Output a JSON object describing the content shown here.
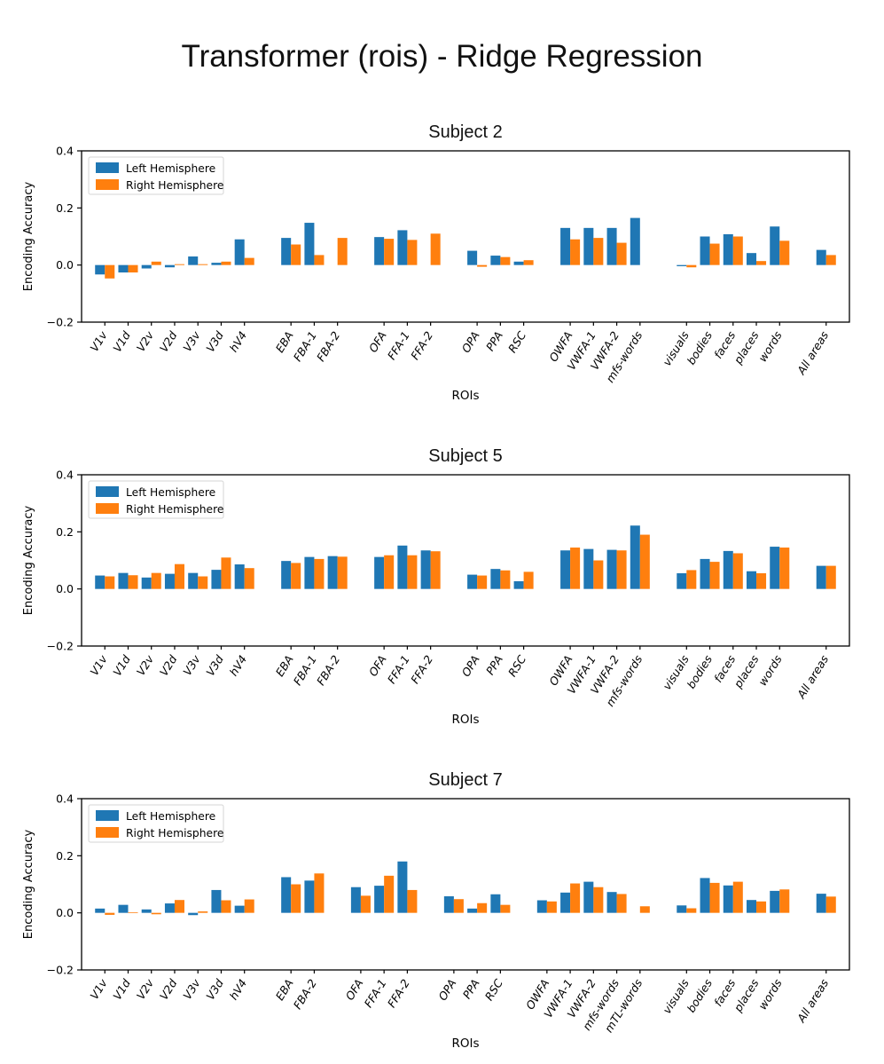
{
  "main_title": "Transformer (rois) - Ridge Regression",
  "colors": {
    "left": "#1f77b4",
    "right": "#ff7f0e",
    "text": "#000000",
    "spine": "#000000",
    "legend_border": "#d5d5d5"
  },
  "chart_data": [
    {
      "type": "bar",
      "title": "Subject 2",
      "xlabel": "ROIs",
      "ylabel": "Encoding Accuracy",
      "ylim": [
        -0.2,
        0.4
      ],
      "yticks": [
        0.4,
        0.2,
        0.0,
        -0.2
      ],
      "legend_position": "upper left",
      "series_names": [
        "Left Hemisphere",
        "Right Hemisphere"
      ],
      "groups": [
        {
          "categories": [
            "V1v",
            "V1d",
            "V2v",
            "V2d",
            "V3v",
            "V3d",
            "hV4"
          ],
          "left": [
            -0.033,
            -0.026,
            -0.012,
            -0.008,
            0.03,
            0.008,
            0.09
          ],
          "right": [
            -0.047,
            -0.026,
            0.012,
            0.003,
            0.003,
            0.012,
            0.025
          ]
        },
        {
          "categories": [
            "EBA",
            "FBA-1",
            "FBA-2"
          ],
          "left": [
            0.095,
            0.148,
            null
          ],
          "right": [
            0.072,
            0.035,
            0.095
          ]
        },
        {
          "categories": [
            "OFA",
            "FFA-1",
            "FFA-2"
          ],
          "left": [
            0.098,
            0.122,
            null
          ],
          "right": [
            0.092,
            0.088,
            0.11
          ]
        },
        {
          "categories": [
            "OPA",
            "PPA",
            "RSC"
          ],
          "left": [
            0.05,
            0.033,
            0.012
          ],
          "right": [
            -0.006,
            0.028,
            0.017
          ]
        },
        {
          "categories": [
            "OWFA",
            "VWFA-1",
            "VWFA-2",
            "mfs-words"
          ],
          "left": [
            0.13,
            0.13,
            0.13,
            0.165
          ],
          "right": [
            0.09,
            0.095,
            0.078,
            null
          ]
        },
        {
          "categories": [
            "visuals",
            "bodies",
            "faces",
            "places",
            "words"
          ],
          "left": [
            -0.004,
            0.1,
            0.108,
            0.042,
            0.135
          ],
          "right": [
            -0.008,
            0.075,
            0.1,
            0.014,
            0.085
          ]
        },
        {
          "categories": [
            "All areas"
          ],
          "left": [
            0.053
          ],
          "right": [
            0.035
          ]
        }
      ]
    },
    {
      "type": "bar",
      "title": "Subject 5",
      "xlabel": "ROIs",
      "ylabel": "Encoding Accuracy",
      "ylim": [
        -0.2,
        0.4
      ],
      "yticks": [
        0.4,
        0.2,
        0.0,
        -0.2
      ],
      "legend_position": "upper left",
      "series_names": [
        "Left Hemisphere",
        "Right Hemisphere"
      ],
      "groups": [
        {
          "categories": [
            "V1v",
            "V1d",
            "V2v",
            "V2d",
            "V3v",
            "V3d",
            "hV4"
          ],
          "left": [
            0.047,
            0.056,
            0.04,
            0.053,
            0.056,
            0.067,
            0.086
          ],
          "right": [
            0.044,
            0.048,
            0.056,
            0.087,
            0.044,
            0.11,
            0.073
          ]
        },
        {
          "categories": [
            "EBA",
            "FBA-1",
            "FBA-2"
          ],
          "left": [
            0.098,
            0.112,
            0.115
          ],
          "right": [
            0.091,
            0.105,
            0.113
          ]
        },
        {
          "categories": [
            "OFA",
            "FFA-1",
            "FFA-2"
          ],
          "left": [
            0.112,
            0.152,
            0.135
          ],
          "right": [
            0.118,
            0.118,
            0.132
          ]
        },
        {
          "categories": [
            "OPA",
            "PPA",
            "RSC"
          ],
          "left": [
            0.05,
            0.07,
            0.027
          ],
          "right": [
            0.047,
            0.065,
            0.06
          ]
        },
        {
          "categories": [
            "OWFA",
            "VWFA-1",
            "VWFA-2",
            "mfs-words"
          ],
          "left": [
            0.135,
            0.14,
            0.137,
            0.222
          ],
          "right": [
            0.145,
            0.1,
            0.135,
            0.19
          ]
        },
        {
          "categories": [
            "visuals",
            "bodies",
            "faces",
            "places",
            "words"
          ],
          "left": [
            0.055,
            0.105,
            0.133,
            0.062,
            0.148
          ],
          "right": [
            0.066,
            0.095,
            0.125,
            0.055,
            0.145
          ]
        },
        {
          "categories": [
            "All areas"
          ],
          "left": [
            0.081
          ],
          "right": [
            0.081
          ]
        }
      ]
    },
    {
      "type": "bar",
      "title": "Subject 7",
      "xlabel": "ROIs",
      "ylabel": "Encoding Accuracy",
      "ylim": [
        -0.2,
        0.4
      ],
      "yticks": [
        0.4,
        0.2,
        0.0,
        -0.2
      ],
      "legend_position": "upper left",
      "series_names": [
        "Left Hemisphere",
        "Right Hemisphere"
      ],
      "groups": [
        {
          "categories": [
            "V1v",
            "V1d",
            "V2v",
            "V2d",
            "V3v",
            "V3d",
            "hV4"
          ],
          "left": [
            0.015,
            0.028,
            0.012,
            0.033,
            -0.008,
            0.08,
            0.025
          ],
          "right": [
            -0.007,
            0.002,
            -0.005,
            0.045,
            0.005,
            0.044,
            0.047
          ]
        },
        {
          "categories": [
            "EBA",
            "FBA-2"
          ],
          "left": [
            0.125,
            0.113
          ],
          "right": [
            0.1,
            0.138
          ]
        },
        {
          "categories": [
            "OFA",
            "FFA-1",
            "FFA-2"
          ],
          "left": [
            0.09,
            0.095,
            0.18
          ],
          "right": [
            0.06,
            0.13,
            0.08
          ]
        },
        {
          "categories": [
            "OPA",
            "PPA",
            "RSC"
          ],
          "left": [
            0.058,
            0.015,
            0.065
          ],
          "right": [
            0.048,
            0.034,
            0.028
          ]
        },
        {
          "categories": [
            "OWFA",
            "VWFA-1",
            "VWFA-2",
            "mfs-words",
            "mTL-words"
          ],
          "left": [
            0.044,
            0.071,
            0.109,
            0.073,
            null
          ],
          "right": [
            0.04,
            0.103,
            0.09,
            0.066,
            0.023
          ]
        },
        {
          "categories": [
            "visuals",
            "bodies",
            "faces",
            "places",
            "words"
          ],
          "left": [
            0.026,
            0.122,
            0.096,
            0.045,
            0.077
          ],
          "right": [
            0.016,
            0.105,
            0.109,
            0.04,
            0.082
          ]
        },
        {
          "categories": [
            "All areas"
          ],
          "left": [
            0.067
          ],
          "right": [
            0.057
          ]
        }
      ]
    }
  ]
}
